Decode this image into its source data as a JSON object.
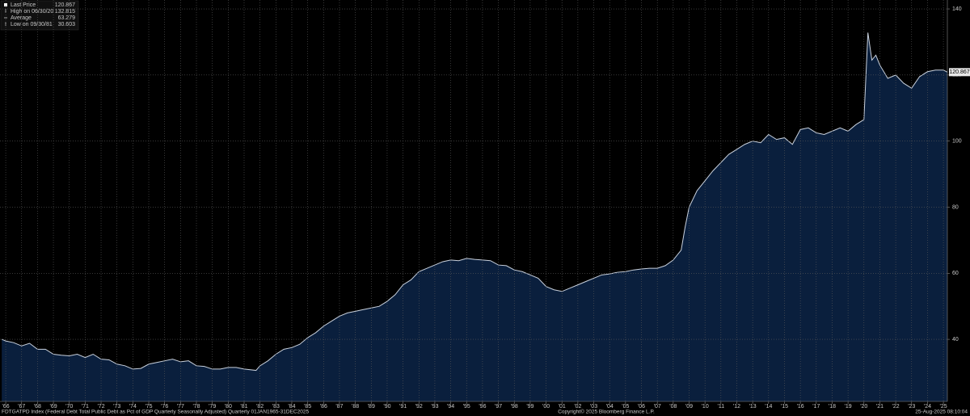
{
  "chart_data": {
    "type": "area",
    "stats": [
      {
        "label": "Last Price",
        "value": 120.867
      },
      {
        "label": "High on 06/30/20",
        "value": 132.815
      },
      {
        "label": "Average",
        "value": 63.279
      },
      {
        "label": "Low on 09/30/81",
        "value": 30.603
      }
    ],
    "footer_left": "FDTGATPD Index (Federal Debt Total Public Debt as Pct of GDP Quarterly Seasonally Adjusted)  Quarterly 01JAN1965-31DEC2025",
    "footer_center": "Copyright© 2025 Bloomberg Finance L.P.",
    "footer_right": "25-Aug-2025 08:10:04",
    "x": [
      1965.75,
      1966,
      1966.5,
      1967,
      1967.5,
      1968,
      1968.5,
      1969,
      1969.5,
      1970,
      1970.5,
      1971,
      1971.5,
      1972,
      1972.5,
      1973,
      1973.5,
      1974,
      1974.5,
      1975,
      1975.5,
      1976,
      1976.5,
      1977,
      1977.5,
      1978,
      1978.5,
      1979,
      1979.5,
      1980,
      1980.5,
      1981,
      1981.75,
      1982,
      1982.5,
      1983,
      1983.5,
      1984,
      1984.5,
      1985,
      1985.5,
      1986,
      1986.5,
      1987,
      1987.5,
      1988,
      1988.5,
      1989,
      1989.5,
      1990,
      1990.5,
      1991,
      1991.5,
      1992,
      1992.5,
      1993,
      1993.5,
      1994,
      1994.5,
      1995,
      1995.5,
      1996,
      1996.5,
      1997,
      1997.5,
      1998,
      1998.5,
      1999,
      1999.5,
      2000,
      2000.5,
      2001,
      2001.5,
      2002,
      2002.5,
      2003,
      2003.5,
      2004,
      2004.5,
      2005,
      2005.5,
      2006,
      2006.5,
      2007,
      2007.5,
      2008,
      2008.5,
      2008.75,
      2009,
      2009.5,
      2010,
      2010.5,
      2011,
      2011.5,
      2012,
      2012.5,
      2013,
      2013.5,
      2014,
      2014.5,
      2015,
      2015.5,
      2016,
      2016.5,
      2017,
      2017.5,
      2018,
      2018.5,
      2019,
      2019.5,
      2020,
      2020.25,
      2020.5,
      2020.75,
      2021,
      2021.5,
      2022,
      2022.5,
      2023,
      2023.5,
      2024,
      2024.5,
      2025,
      2025.25
    ],
    "values": [
      40,
      39.5,
      39,
      38,
      38.8,
      37,
      37,
      35.5,
      35.2,
      35,
      35.5,
      34.5,
      35.5,
      34,
      33.8,
      32.5,
      32,
      31,
      31.2,
      32.5,
      33,
      33.5,
      34,
      33.2,
      33.5,
      32,
      31.8,
      31,
      31,
      31.5,
      31.5,
      31,
      30.603,
      32,
      33.5,
      35.5,
      37,
      37.5,
      38.5,
      40.5,
      42,
      44,
      45.5,
      47,
      48,
      48.5,
      49,
      49.5,
      50,
      51.5,
      53.5,
      56.5,
      58,
      60.5,
      61.5,
      62.5,
      63.5,
      64,
      63.8,
      64.5,
      64.2,
      64,
      63.8,
      62.5,
      62.3,
      61,
      60.5,
      59.5,
      58.5,
      56,
      55,
      54.5,
      55.5,
      56.5,
      57.5,
      58.5,
      59.5,
      59.8,
      60.3,
      60.5,
      61,
      61.3,
      61.5,
      61.5,
      62.3,
      64,
      67,
      74,
      80,
      85,
      88,
      91,
      93.5,
      96,
      97.5,
      99,
      100,
      99.5,
      102,
      100.5,
      101,
      99,
      103.5,
      104,
      102.5,
      102,
      103,
      104,
      103,
      105,
      106.5,
      132.815,
      124.5,
      126,
      123,
      119,
      120,
      117.5,
      116,
      119.5,
      121,
      121.5,
      121.5,
      120.867
    ],
    "fill": "#0a1f3d",
    "line_color": "#c9d1dd",
    "xlim": [
      1965.64,
      2025.25
    ],
    "ylim": [
      21.2,
      142.7
    ],
    "yticks": [
      40,
      60,
      80,
      100,
      120,
      140
    ],
    "xticks": [
      {
        "value": 1966,
        "label": "'66"
      },
      {
        "value": 1967,
        "label": "'67"
      },
      {
        "value": 1968,
        "label": "'68"
      },
      {
        "value": 1969,
        "label": "'69"
      },
      {
        "value": 1970,
        "label": "'70"
      },
      {
        "value": 1971,
        "label": "'71"
      },
      {
        "value": 1972,
        "label": "'72"
      },
      {
        "value": 1973,
        "label": "'73"
      },
      {
        "value": 1974,
        "label": "'74"
      },
      {
        "value": 1975,
        "label": "'75"
      },
      {
        "value": 1976,
        "label": "'76"
      },
      {
        "value": 1977,
        "label": "'77"
      },
      {
        "value": 1978,
        "label": "'78"
      },
      {
        "value": 1979,
        "label": "'79"
      },
      {
        "value": 1980,
        "label": "'80"
      },
      {
        "value": 1981,
        "label": "'81"
      },
      {
        "value": 1982,
        "label": "'82"
      },
      {
        "value": 1983,
        "label": "'83"
      },
      {
        "value": 1984,
        "label": "'84"
      },
      {
        "value": 1985,
        "label": "'85"
      },
      {
        "value": 1986,
        "label": "'86"
      },
      {
        "value": 1987,
        "label": "'87"
      },
      {
        "value": 1988,
        "label": "'88"
      },
      {
        "value": 1989,
        "label": "'89"
      },
      {
        "value": 1990,
        "label": "'90"
      },
      {
        "value": 1991,
        "label": "'91"
      },
      {
        "value": 1992,
        "label": "'92"
      },
      {
        "value": 1993,
        "label": "'93"
      },
      {
        "value": 1994,
        "label": "'94"
      },
      {
        "value": 1995,
        "label": "'95"
      },
      {
        "value": 1996,
        "label": "'96"
      },
      {
        "value": 1997,
        "label": "'97"
      },
      {
        "value": 1998,
        "label": "'98"
      },
      {
        "value": 1999,
        "label": "'99"
      },
      {
        "value": 2000,
        "label": "'00"
      },
      {
        "value": 2001,
        "label": "'01"
      },
      {
        "value": 2002,
        "label": "'02"
      },
      {
        "value": 2003,
        "label": "'03"
      },
      {
        "value": 2004,
        "label": "'04"
      },
      {
        "value": 2005,
        "label": "'05"
      },
      {
        "value": 2006,
        "label": "'06"
      },
      {
        "value": 2007,
        "label": "'07"
      },
      {
        "value": 2008,
        "label": "'08"
      },
      {
        "value": 2009,
        "label": "'09"
      },
      {
        "value": 2010,
        "label": "'10"
      },
      {
        "value": 2011,
        "label": "'11"
      },
      {
        "value": 2012,
        "label": "'12"
      },
      {
        "value": 2013,
        "label": "'13"
      },
      {
        "value": 2014,
        "label": "'14"
      },
      {
        "value": 2015,
        "label": "'15"
      },
      {
        "value": 2016,
        "label": "'16"
      },
      {
        "value": 2017,
        "label": "'17"
      },
      {
        "value": 2018,
        "label": "'18"
      },
      {
        "value": 2019,
        "label": "'19"
      },
      {
        "value": 2020,
        "label": "'20"
      },
      {
        "value": 2021,
        "label": "'21"
      },
      {
        "value": 2022,
        "label": "'22"
      },
      {
        "value": 2023,
        "label": "'23"
      },
      {
        "value": 2024,
        "label": "'24"
      },
      {
        "value": 2025,
        "label": "'25"
      }
    ],
    "grid": true
  }
}
